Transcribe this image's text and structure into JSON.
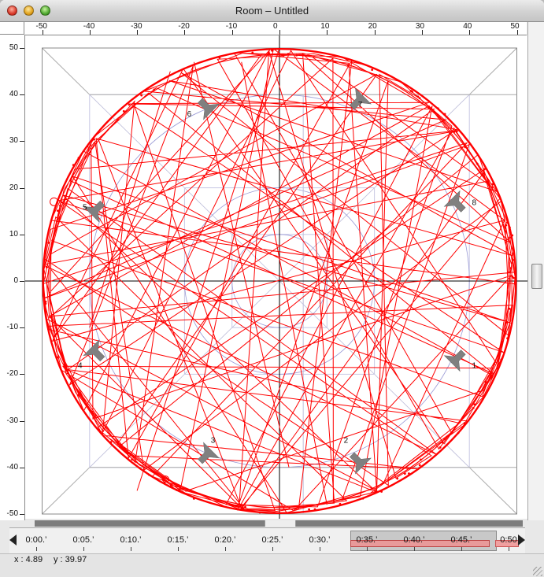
{
  "window": {
    "title": "Room – Untitled"
  },
  "ruler": {
    "x_ticks": [
      -50,
      -40,
      -30,
      -20,
      -10,
      0,
      10,
      20,
      30,
      40,
      50
    ],
    "y_ticks": [
      50,
      40,
      30,
      20,
      10,
      0,
      -10,
      -20,
      -30,
      -40,
      -50
    ]
  },
  "speakers": [
    {
      "id": "1",
      "label": "1"
    },
    {
      "id": "2",
      "label": "2"
    },
    {
      "id": "3",
      "label": "3"
    },
    {
      "id": "4",
      "label": "4"
    },
    {
      "id": "5",
      "label": "5"
    },
    {
      "id": "6",
      "label": "6"
    },
    {
      "id": "7",
      "label": "7"
    },
    {
      "id": "8",
      "label": "8"
    }
  ],
  "timeline": {
    "labels": [
      "0:00.’",
      "0:05.’",
      "0:10.’",
      "0:15.’",
      "0:20.’",
      "0:25.’",
      "0:30.’",
      "0:35.’",
      "0:40.’",
      "0:45.’",
      "0:50"
    ]
  },
  "status": {
    "x_label": "x : 4.89",
    "y_label": "y : 39.97"
  },
  "colors": {
    "trajectory": "#ff0000",
    "speaker": "#808080",
    "guide": "#9a9ad6"
  }
}
